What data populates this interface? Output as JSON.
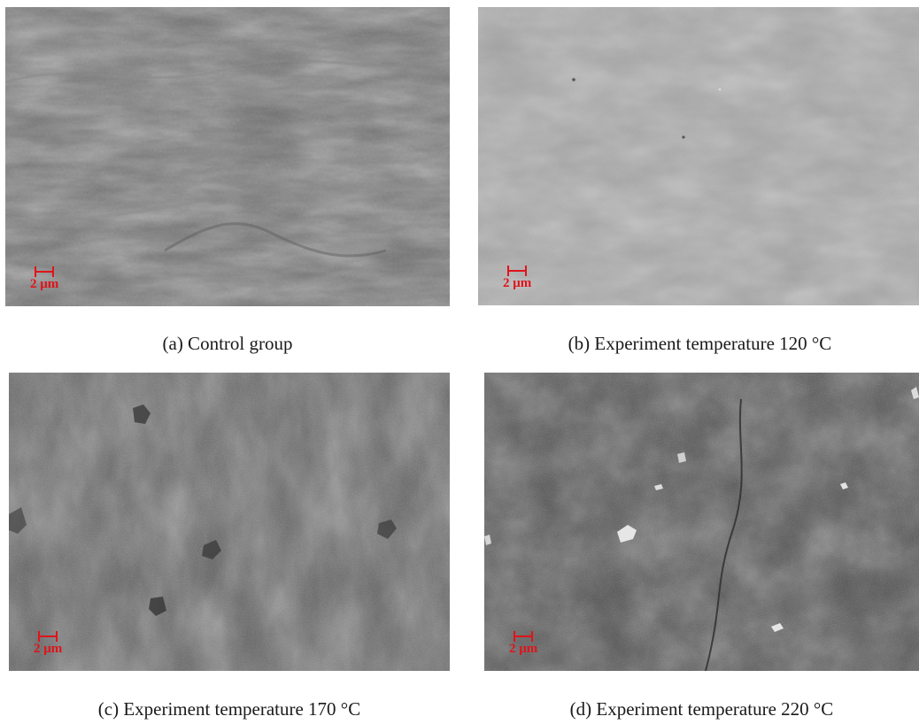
{
  "figure": {
    "panels": [
      {
        "id": "a",
        "caption": "(a) Control group",
        "scale_bar_label": "2 μm",
        "tone": "#6f6f6f"
      },
      {
        "id": "b",
        "caption": "(b) Experiment temperature 120 °C",
        "scale_bar_label": "2 μm",
        "tone": "#9a9a9a"
      },
      {
        "id": "c",
        "caption": "(c) Experiment temperature 170 °C",
        "scale_bar_label": "2 μm",
        "tone": "#5e5e5e"
      },
      {
        "id": "d",
        "caption": "(d) Experiment temperature 220 °C",
        "scale_bar_label": "2 μm",
        "tone": "#4a4a4a"
      }
    ],
    "scale_bar_color": "#e0141a"
  }
}
